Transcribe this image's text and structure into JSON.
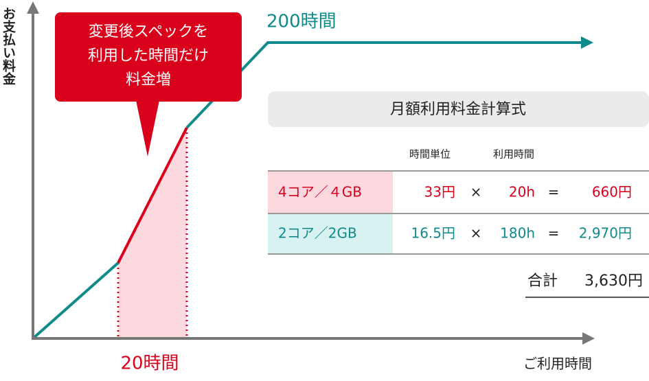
{
  "axis": {
    "y_label": "お支払い料金",
    "x_label": "ご利用時間"
  },
  "callout": {
    "lines": [
      "変更後スペックを",
      "利用した時間だけ",
      "料金増"
    ]
  },
  "labels": {
    "end_hours": "200時間",
    "upgrade_hours": "20時間"
  },
  "table": {
    "title": "月額利用料金計算式",
    "headers": [
      "時間単位",
      "利用時間"
    ],
    "rows": [
      [
        "4コア／４GB",
        "33円",
        "×",
        "20h",
        "=",
        "660円"
      ],
      [
        "2コア／2GB",
        "16.5円",
        "×",
        "180h",
        "=",
        "2,970円"
      ]
    ],
    "total_label": "合計",
    "total_value": "3,630円"
  }
}
